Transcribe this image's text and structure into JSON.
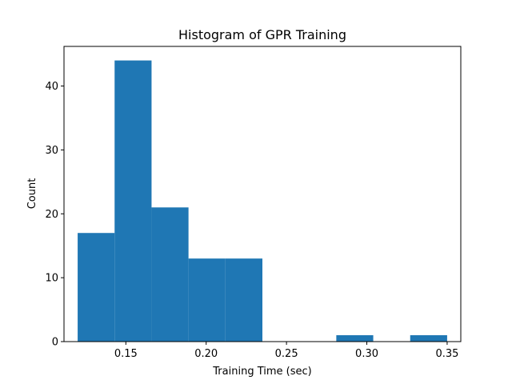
{
  "chart_data": {
    "type": "bar",
    "title": "Histogram of GPR Training",
    "xlabel": "Training Time (sec)",
    "ylabel": "Count",
    "xlim": [
      0.1115,
      0.3585
    ],
    "ylim": [
      0,
      46.2
    ],
    "bin_edges": [
      0.12,
      0.143,
      0.166,
      0.189,
      0.212,
      0.235,
      0.258,
      0.281,
      0.304,
      0.327,
      0.35
    ],
    "counts": [
      17,
      44,
      21,
      13,
      13,
      0,
      0,
      1,
      0,
      1
    ],
    "xticks": [
      0.15,
      0.2,
      0.25,
      0.3,
      0.35
    ],
    "xtick_labels": [
      "0.15",
      "0.20",
      "0.25",
      "0.30",
      "0.35"
    ],
    "yticks": [
      0,
      10,
      20,
      30,
      40
    ],
    "ytick_labels": [
      "0",
      "10",
      "20",
      "30",
      "40"
    ],
    "bar_color": "#1f77b4",
    "grid": false
  }
}
